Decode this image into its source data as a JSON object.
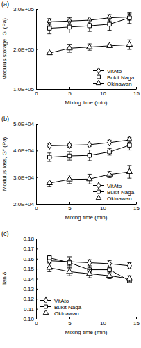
{
  "chart_data": [
    {
      "type": "line",
      "title": "(a)",
      "x_label": "Mixing time (min)",
      "y_label": "Modulus storage, G′ (Pa)",
      "x": [
        2,
        5,
        8,
        11,
        14
      ],
      "xlim": [
        0,
        15
      ],
      "xticks": [
        0,
        5,
        10,
        15
      ],
      "ylim": [
        100000,
        300000
      ],
      "yticks": [
        {
          "value": 100000,
          "label": "1.0E+05"
        },
        {
          "value": 200000,
          "label": "2.0E+05"
        },
        {
          "value": 300000,
          "label": "3.0E+05"
        }
      ],
      "legend": "lower right",
      "series": [
        {
          "name": "VitAto",
          "color": "#000000",
          "marker": "diamond",
          "values": [
            268000,
            270000,
            272000,
            278000,
            280000
          ],
          "errors": [
            8000,
            8000,
            8000,
            8000,
            8000
          ]
        },
        {
          "name": "Bukit Naga",
          "color": "#000000",
          "marker": "square",
          "values": [
            252000,
            255000,
            258000,
            262000,
            278000
          ],
          "errors": [
            14000,
            15000,
            14000,
            15000,
            14000
          ]
        },
        {
          "name": "Okinawan",
          "color": "#000000",
          "marker": "triangle",
          "values": [
            190000,
            202000,
            205000,
            208000,
            211000
          ],
          "errors": [
            3000,
            10000,
            8000,
            4000,
            12000
          ]
        }
      ]
    },
    {
      "type": "line",
      "title": "(b)",
      "x_label": "Mixing time (min)",
      "y_label": "Modulus loss, G″ (Pa)",
      "x": [
        2,
        5,
        8,
        11,
        14
      ],
      "xlim": [
        0,
        15
      ],
      "xticks": [
        0,
        5,
        10,
        15
      ],
      "ylim": [
        20000,
        50000
      ],
      "yticks": [
        {
          "value": 20000,
          "label": "2.0E+04"
        },
        {
          "value": 30000,
          "label": "3.0E+04"
        },
        {
          "value": 40000,
          "label": "4.0E+04"
        },
        {
          "value": 50000,
          "label": "5.0E+04"
        }
      ],
      "legend": "lower right",
      "series": [
        {
          "name": "VitAto",
          "color": "#000000",
          "marker": "diamond",
          "values": [
            41800,
            42000,
            42200,
            43000,
            44000
          ],
          "errors": [
            700,
            700,
            600,
            900,
            800
          ]
        },
        {
          "name": "Bukit Naga",
          "color": "#000000",
          "marker": "square",
          "values": [
            37500,
            38000,
            38200,
            39500,
            42000
          ],
          "errors": [
            1600,
            1600,
            2000,
            1200,
            1800
          ]
        },
        {
          "name": "Okinawan",
          "color": "#000000",
          "marker": "triangle",
          "values": [
            27800,
            29200,
            29300,
            31000,
            32000
          ],
          "errors": [
            1200,
            1600,
            1800,
            1200,
            2400
          ]
        }
      ]
    },
    {
      "type": "line",
      "title": "(c)",
      "x_label": "Mixing time (min)",
      "y_label": "Tan δ",
      "x": [
        2,
        5,
        8,
        11,
        14
      ],
      "xlim": [
        0,
        15
      ],
      "xticks": [
        0,
        5,
        10,
        15
      ],
      "ylim": [
        0.1,
        0.18
      ],
      "yticks": [
        {
          "value": 0.1,
          "label": "0.10"
        },
        0.11,
        0.12,
        0.13,
        0.14,
        0.15,
        0.16,
        0.17,
        0.18
      ],
      "legend": "lower left",
      "series": [
        {
          "name": "VitAto",
          "color": "#000000",
          "marker": "diamond",
          "values": [
            0.158,
            0.157,
            0.156,
            0.155,
            0.153
          ],
          "errors": [
            0.002,
            0.004,
            0.003,
            0.003,
            0.003
          ]
        },
        {
          "name": "Bukit Naga",
          "color": "#000000",
          "marker": "square",
          "values": [
            0.161,
            0.156,
            0.149,
            0.149,
            0.138
          ],
          "errors": [
            0.002,
            0.006,
            0.003,
            0.002,
            0.002
          ]
        },
        {
          "name": "Okinawan",
          "color": "#000000",
          "marker": "triangle",
          "values": [
            0.151,
            0.147,
            0.145,
            0.143,
            0.14
          ],
          "errors": [
            0.004,
            0.004,
            0.004,
            0.003,
            0.003
          ]
        }
      ]
    }
  ]
}
